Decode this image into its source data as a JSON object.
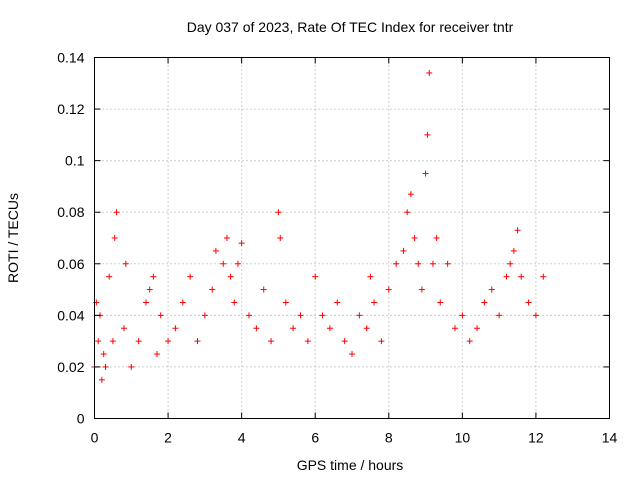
{
  "chart_data": {
    "type": "scatter",
    "title": "Day 037 of 2023, Rate Of TEC Index for receiver tntr",
    "xlabel": "GPS time / hours",
    "ylabel": "ROTI / TECUs",
    "xlim": [
      0,
      14
    ],
    "ylim": [
      0,
      0.14
    ],
    "x_ticks": [
      "0",
      "2",
      "4",
      "6",
      "8",
      "10",
      "12",
      "14"
    ],
    "y_ticks": [
      "0",
      "0.02",
      "0.04",
      "0.06",
      "0.08",
      "0.1",
      "0.12",
      "0.14"
    ],
    "grid": true,
    "marker": "+",
    "color": "#ff0000",
    "series": [
      {
        "x": [
          0.0,
          0.05,
          0.1,
          0.15,
          0.2,
          0.25,
          0.3,
          0.4,
          0.5,
          0.55,
          0.6,
          0.8,
          0.85,
          1.0,
          1.2,
          1.4,
          1.5,
          1.6,
          1.7,
          1.8,
          2.0,
          2.2,
          2.4,
          2.6,
          2.8,
          3.0,
          3.2,
          3.3,
          3.5,
          3.6,
          3.7,
          3.8,
          3.9,
          4.0,
          4.2,
          4.4,
          4.6,
          4.8,
          5.0,
          5.05,
          5.2,
          5.4,
          5.6,
          5.8,
          6.0,
          6.2,
          6.4,
          6.6,
          6.8,
          7.0,
          7.2,
          7.4,
          7.5,
          7.6,
          7.8,
          8.0,
          8.2,
          8.4,
          8.5,
          8.6,
          8.7,
          8.8,
          8.9,
          9.0,
          9.05,
          9.1,
          9.2,
          9.3,
          9.4,
          9.6,
          9.8,
          10.0,
          10.2,
          10.4,
          10.6,
          10.8,
          11.0,
          11.2,
          11.3,
          11.4,
          11.5,
          11.6,
          11.8,
          12.0,
          12.2
        ],
        "y": [
          0.02,
          0.045,
          0.03,
          0.04,
          0.015,
          0.025,
          0.02,
          0.055,
          0.03,
          0.07,
          0.08,
          0.035,
          0.06,
          0.02,
          0.03,
          0.045,
          0.05,
          0.055,
          0.025,
          0.04,
          0.03,
          0.035,
          0.045,
          0.055,
          0.03,
          0.04,
          0.05,
          0.065,
          0.06,
          0.07,
          0.055,
          0.045,
          0.06,
          0.068,
          0.04,
          0.035,
          0.05,
          0.03,
          0.08,
          0.07,
          0.045,
          0.035,
          0.04,
          0.03,
          0.055,
          0.04,
          0.035,
          0.045,
          0.03,
          0.025,
          0.04,
          0.035,
          0.055,
          0.045,
          0.03,
          0.05,
          0.06,
          0.065,
          0.08,
          0.087,
          0.07,
          0.06,
          0.05,
          0.095,
          0.11,
          0.134,
          0.06,
          0.07,
          0.045,
          0.06,
          0.035,
          0.04,
          0.03,
          0.035,
          0.045,
          0.05,
          0.04,
          0.055,
          0.06,
          0.065,
          0.073,
          0.055,
          0.045,
          0.04,
          0.055
        ]
      }
    ]
  }
}
